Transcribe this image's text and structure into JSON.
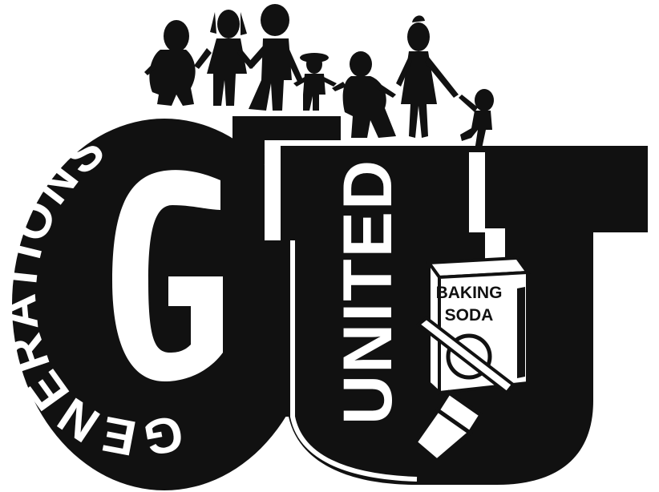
{
  "logo": {
    "arc_word": "GENERATIONS",
    "vertical_word": "UNITED",
    "box_label_line1": "BAKING",
    "box_label_line2": "SODA",
    "colors": {
      "ink": "#111111",
      "paper": "#ffffff"
    },
    "figures": [
      "adult-figure",
      "child-figure",
      "adult-figure",
      "child-figure",
      "elder-figure",
      "adult-figure",
      "child-figure"
    ]
  }
}
